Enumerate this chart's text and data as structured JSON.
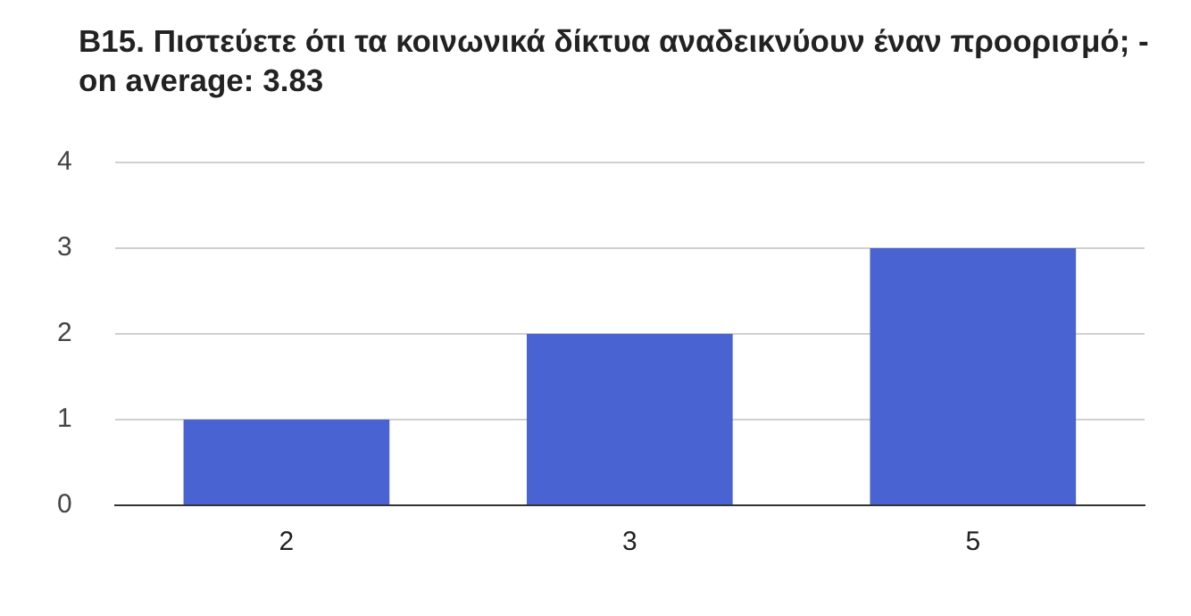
{
  "chart_data": {
    "type": "bar",
    "title": "B15. Πιστεύετε ότι τα κοινωνικά δίκτυα αναδεικνύουν έναν προορισμό; - on average: 3.83",
    "categories": [
      "2",
      "3",
      "5"
    ],
    "values": [
      1,
      2,
      3
    ],
    "color": "#4a63d3",
    "ylim": [
      0,
      4
    ],
    "yticks": [
      0,
      1,
      2,
      3,
      4
    ],
    "grid": "y"
  }
}
